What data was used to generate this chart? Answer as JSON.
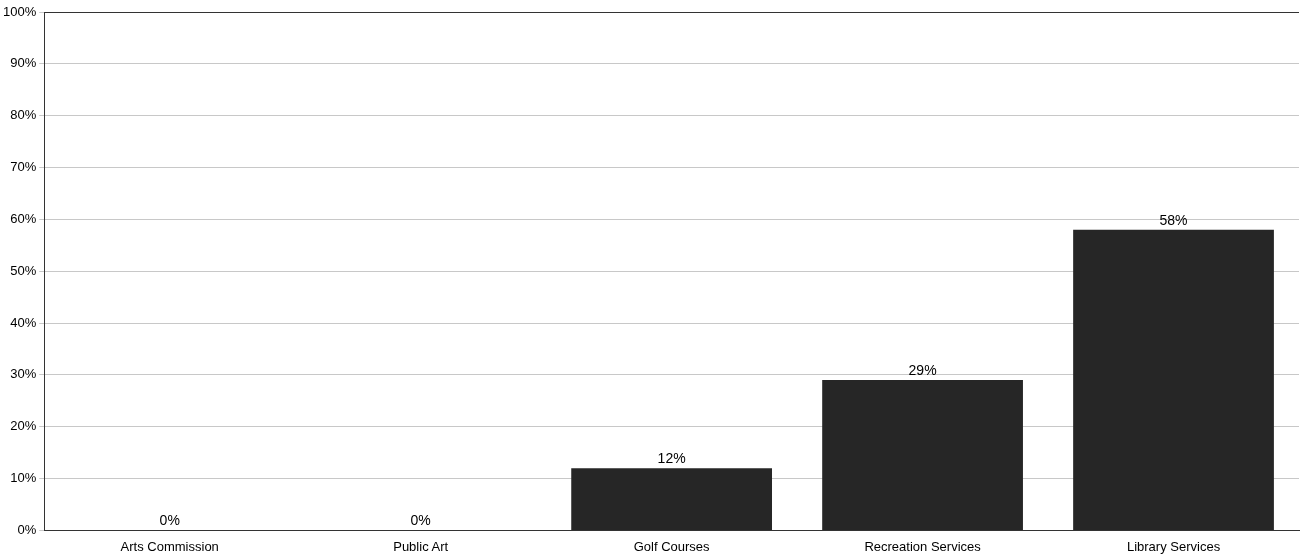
{
  "chart_data": {
    "type": "bar",
    "categories": [
      "Arts Commission",
      "Public Art",
      "Golf Courses",
      "Recreation Services",
      "Library Services"
    ],
    "values": [
      0,
      0,
      12,
      29,
      58
    ],
    "value_labels": [
      "0%",
      "0%",
      "12%",
      "29%",
      "58%"
    ],
    "color": "#262626",
    "ylim": [
      0,
      100
    ],
    "yticks": [
      {
        "value": 0,
        "label": "0%"
      },
      {
        "value": 10,
        "label": "10%"
      },
      {
        "value": 20,
        "label": "20%"
      },
      {
        "value": 30,
        "label": "30%"
      },
      {
        "value": 40,
        "label": "40%"
      },
      {
        "value": 50,
        "label": "50%"
      },
      {
        "value": 60,
        "label": "60%"
      },
      {
        "value": 70,
        "label": "70%"
      },
      {
        "value": 80,
        "label": "80%"
      },
      {
        "value": 90,
        "label": "90%"
      },
      {
        "value": 100,
        "label": "100%"
      }
    ],
    "grid": "y"
  }
}
